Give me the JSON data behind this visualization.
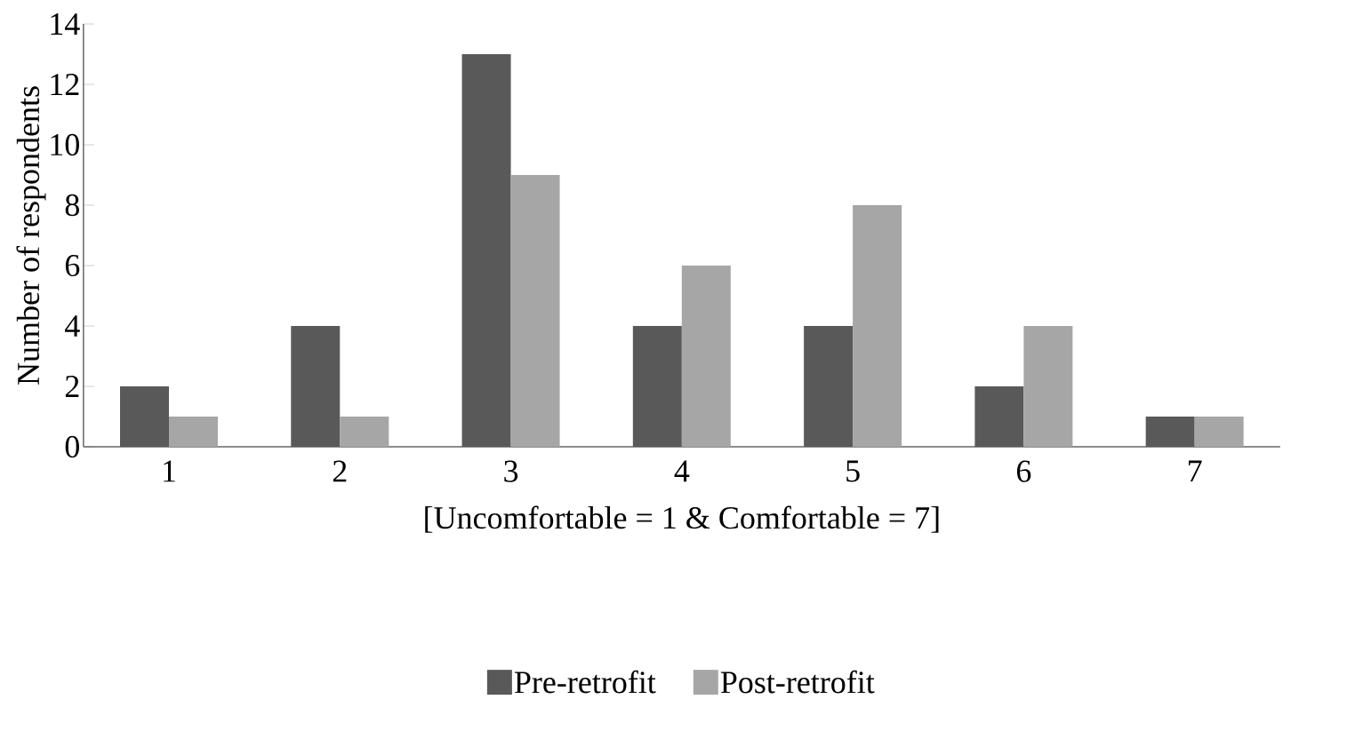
{
  "chart_data": {
    "type": "bar",
    "xlabel": "[Uncomfortable = 1 & Comfortable = 7]",
    "ylabel": "Number of respondents",
    "categories": [
      "1",
      "2",
      "3",
      "4",
      "5",
      "6",
      "7"
    ],
    "series": [
      {
        "name": "Pre-retrofit",
        "color": "#595959",
        "values": [
          2,
          4,
          13,
          4,
          4,
          2,
          1
        ]
      },
      {
        "name": "Post-retrofit",
        "color": "#a6a6a6",
        "values": [
          1,
          1,
          9,
          6,
          8,
          4,
          1
        ]
      }
    ],
    "ylim": [
      0,
      14
    ],
    "yticks": [
      0,
      2,
      4,
      6,
      8,
      10,
      12,
      14
    ],
    "grid": false,
    "legend": "bottom"
  }
}
